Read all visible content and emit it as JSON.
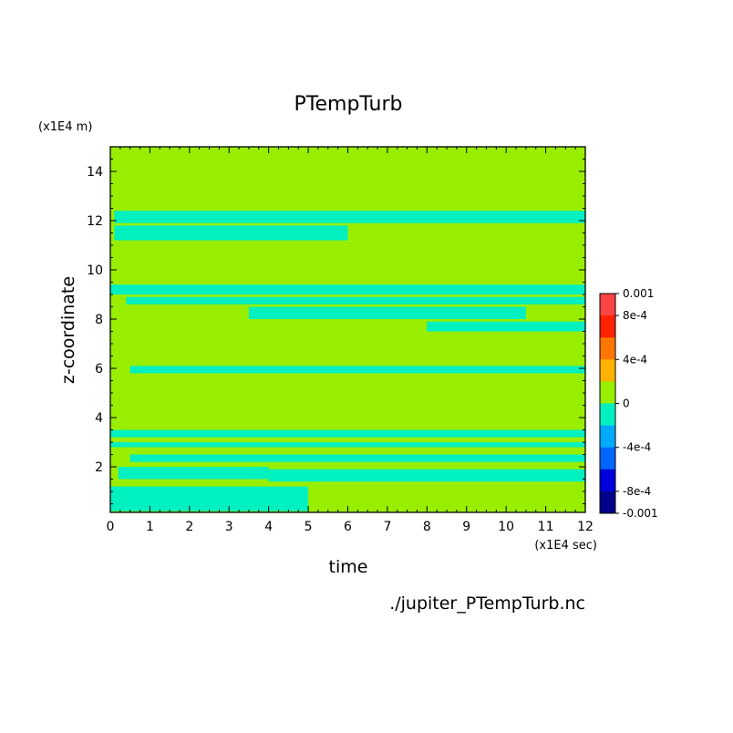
{
  "chart_data": {
    "type": "heatmap",
    "title": "PTempTurb",
    "xlabel": "time",
    "ylabel": "z-coordinate",
    "x_unit_label": "(x1E4 sec)",
    "y_unit_label": "(x1E4 m)",
    "footer": "./jupiter_PTempTurb.nc",
    "xlim": [
      0,
      12
    ],
    "ylim": [
      0.15,
      15
    ],
    "x_ticks": [
      "0",
      "1",
      "2",
      "3",
      "4",
      "5",
      "6",
      "7",
      "8",
      "9",
      "10",
      "11",
      "12"
    ],
    "y_ticks": [
      "2",
      "4",
      "6",
      "8",
      "10",
      "12",
      "14"
    ],
    "background_level": "0",
    "colorbar": {
      "levels": [
        {
          "color": "#ff4444"
        },
        {
          "color": "#ff2200"
        },
        {
          "color": "#ff7700"
        },
        {
          "color": "#ffb300"
        },
        {
          "color": "#99ee00"
        },
        {
          "color": "#00f0c0"
        },
        {
          "color": "#00aaff"
        },
        {
          "color": "#0066ff"
        },
        {
          "color": "#0000dd"
        },
        {
          "color": "#000088"
        }
      ],
      "labels": [
        {
          "text": "0.001",
          "value": 0.001
        },
        {
          "text": "8e-4",
          "value": 0.0008
        },
        {
          "text": "4e-4",
          "value": 0.0004
        },
        {
          "text": "0",
          "value": 0.0
        },
        {
          "text": "-4e-4",
          "value": -0.0004
        },
        {
          "text": "-8e-4",
          "value": -0.0008
        },
        {
          "text": "-0.001",
          "value": -0.001
        }
      ]
    },
    "negative_bands": [
      {
        "x_start": 0.1,
        "x_end": 12,
        "z_bottom": 11.9,
        "z_top": 12.4
      },
      {
        "x_start": 0.1,
        "x_end": 6,
        "z_bottom": 11.2,
        "z_top": 11.8
      },
      {
        "x_start": 0,
        "x_end": 12,
        "z_bottom": 9.0,
        "z_top": 9.4
      },
      {
        "x_start": 0.4,
        "x_end": 12,
        "z_bottom": 8.6,
        "z_top": 8.9
      },
      {
        "x_start": 3.5,
        "x_end": 10.5,
        "z_bottom": 8.0,
        "z_top": 8.5
      },
      {
        "x_start": 8,
        "x_end": 12,
        "z_bottom": 7.5,
        "z_top": 7.9
      },
      {
        "x_start": 0.5,
        "x_end": 12,
        "z_bottom": 5.8,
        "z_top": 6.1
      },
      {
        "x_start": 0,
        "x_end": 12,
        "z_bottom": 3.2,
        "z_top": 3.5
      },
      {
        "x_start": 0,
        "x_end": 12,
        "z_bottom": 2.8,
        "z_top": 3.0
      },
      {
        "x_start": 0.5,
        "x_end": 12,
        "z_bottom": 2.2,
        "z_top": 2.5
      },
      {
        "x_start": 4,
        "x_end": 12,
        "z_bottom": 1.4,
        "z_top": 1.9
      },
      {
        "x_start": 0.2,
        "x_end": 4,
        "z_bottom": 1.5,
        "z_top": 2.0
      },
      {
        "x_start": 0,
        "x_end": 5,
        "z_bottom": 0.2,
        "z_top": 1.2
      }
    ]
  }
}
